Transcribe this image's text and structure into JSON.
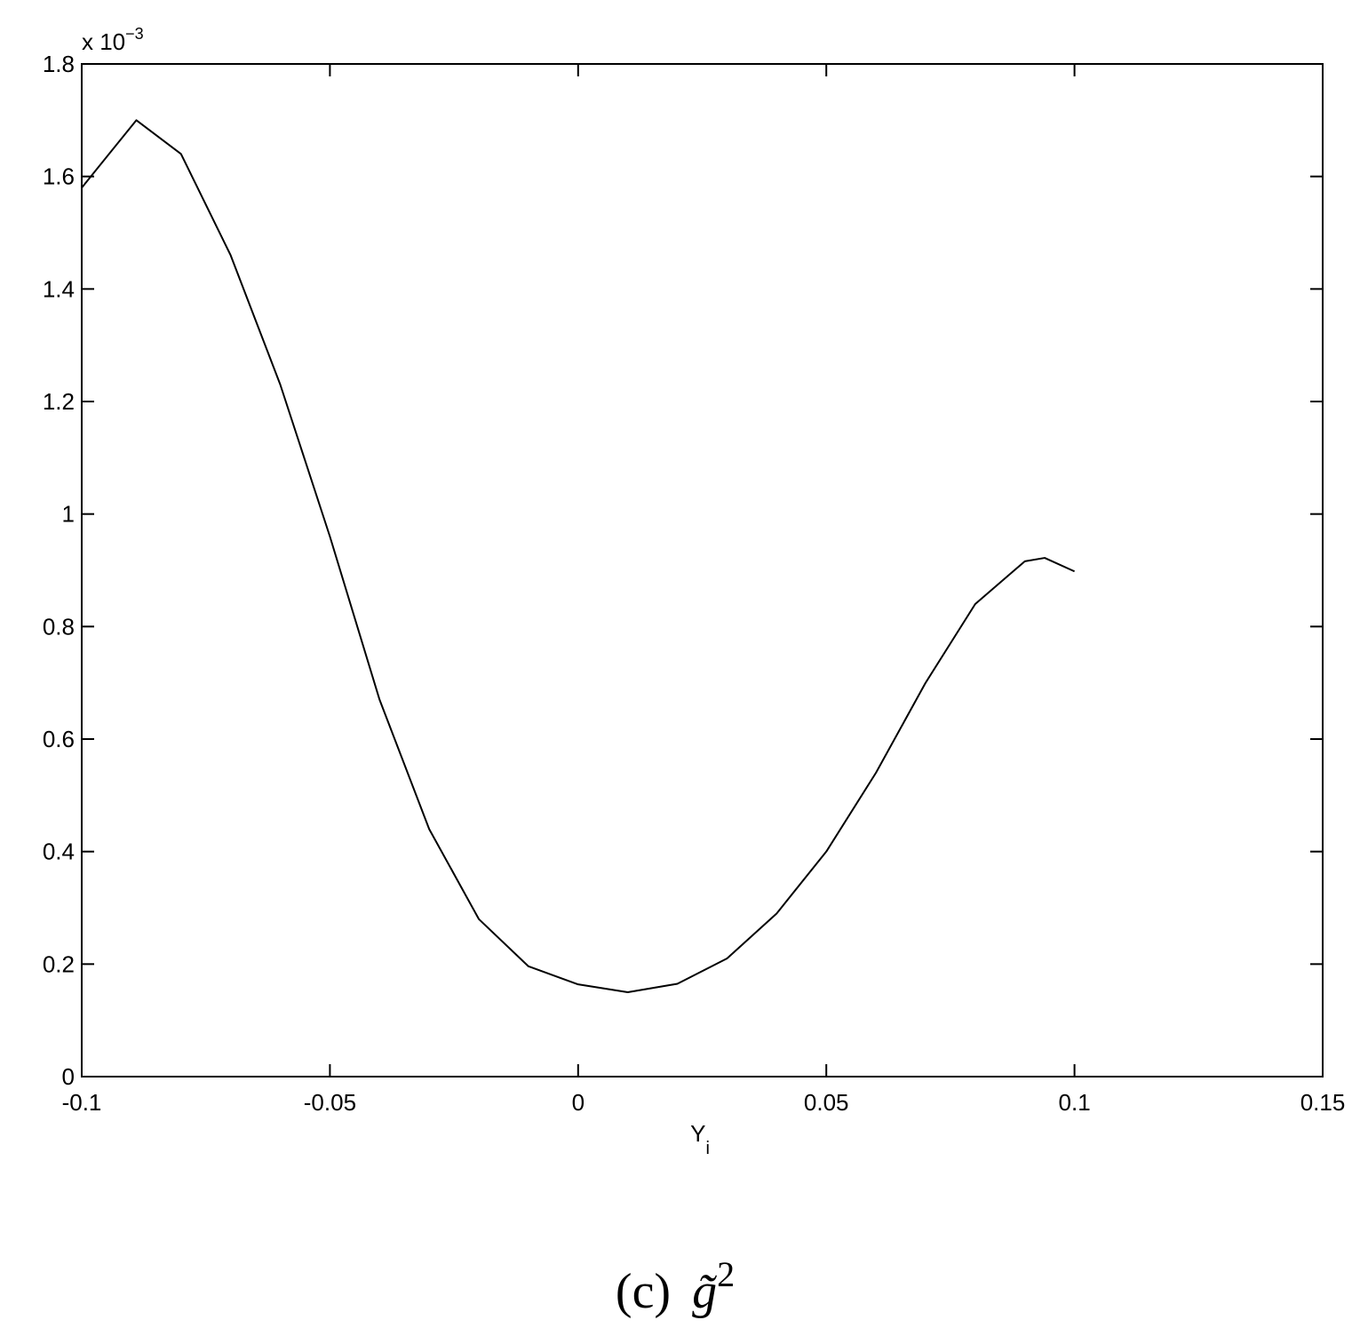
{
  "chart_data": {
    "type": "line",
    "x_label": "Y",
    "x_label_subscript": "i",
    "y_scale_base": "x 10",
    "y_scale_exponent": "−3",
    "caption": "(c)",
    "caption_symbol": "g̃",
    "caption_superscript": "2",
    "x": [
      -0.1,
      -0.089,
      -0.08,
      -0.07,
      -0.06,
      -0.05,
      -0.04,
      -0.03,
      -0.02,
      -0.01,
      0,
      0.01,
      0.02,
      0.03,
      0.04,
      0.05,
      0.06,
      0.07,
      0.08,
      0.09,
      0.094,
      0.1
    ],
    "series": [
      {
        "color": "#000000",
        "values": [
          1.58,
          1.7,
          1.64,
          1.46,
          1.23,
          0.96,
          0.67,
          0.44,
          0.28,
          0.196,
          0.164,
          0.15,
          0.165,
          0.21,
          0.29,
          0.4,
          0.54,
          0.7,
          0.84,
          0.916,
          0.922,
          0.898
        ]
      }
    ],
    "xlim": [
      -0.1,
      0.15
    ],
    "xticks": [
      -0.1,
      -0.05,
      0,
      0.05,
      0.1,
      0.15
    ],
    "ylim": [
      0,
      1.8
    ],
    "yticks": [
      0,
      0.2,
      0.4,
      0.6,
      0.8,
      1,
      1.2,
      1.4,
      1.6,
      1.8
    ],
    "grid": false
  }
}
